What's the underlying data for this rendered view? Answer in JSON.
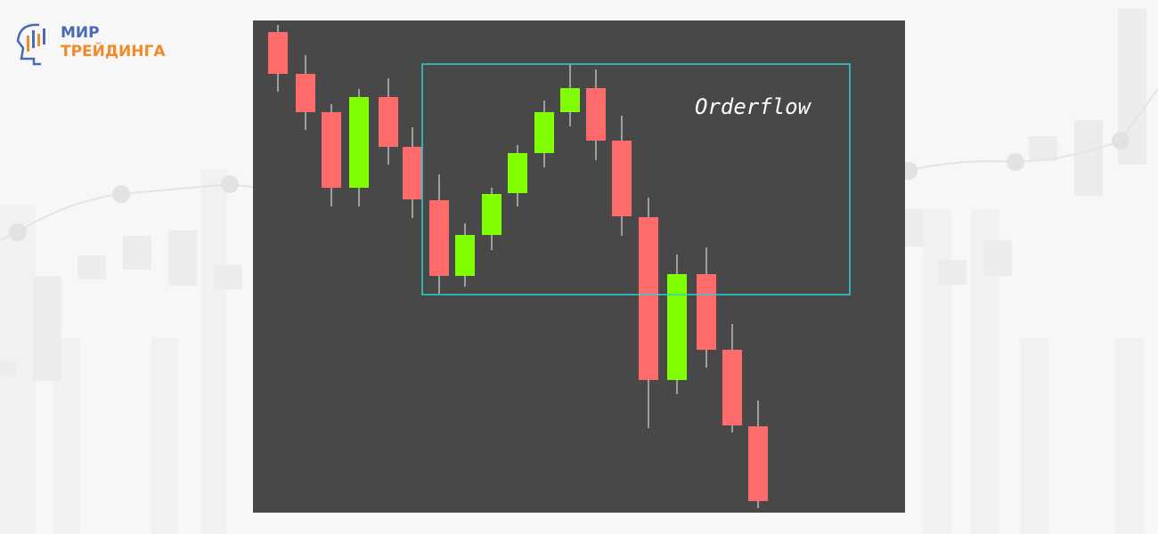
{
  "logo": {
    "line1": "МИР",
    "line2": "ТРЕЙДИНГА"
  },
  "annotation": "Orderflow"
}
